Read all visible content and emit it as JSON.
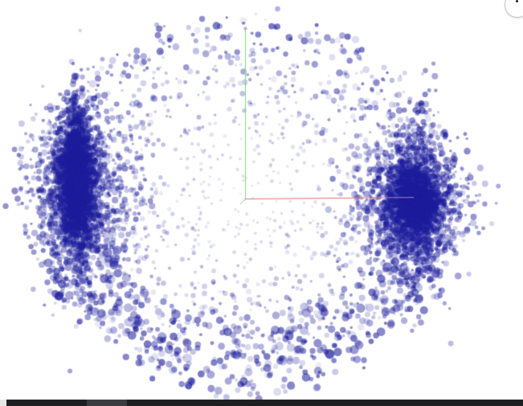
{
  "viewer": {
    "point_color": "#1c1c9c",
    "axis_colors": {
      "x": "#e07070",
      "y": "#7ed67e"
    }
  },
  "icons": {
    "corner": "menu-dot-icon"
  }
}
